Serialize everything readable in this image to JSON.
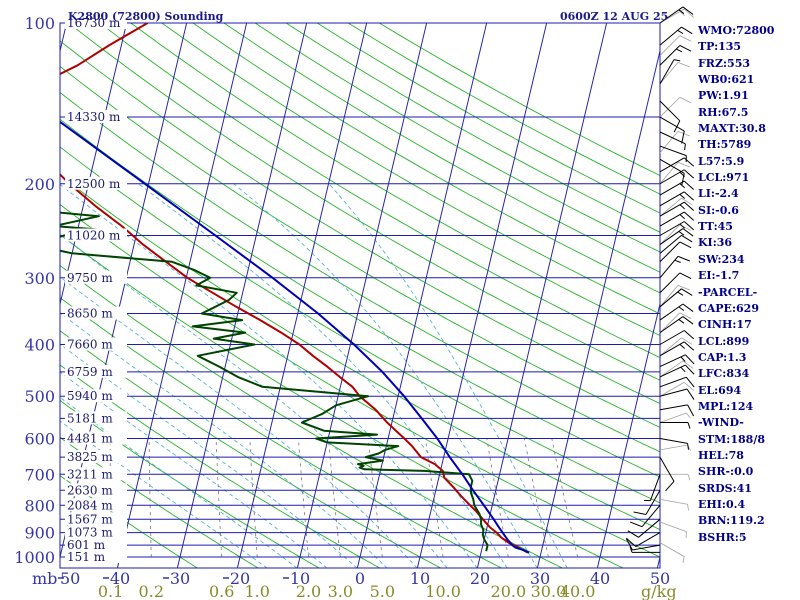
{
  "header": {
    "station_title": "K2800 (72800) Sounding",
    "valid_time": "0600Z 12 AUG 25"
  },
  "colors": {
    "isobar": "#1c1cae",
    "isotherm": "#2727a6",
    "dry_adiabat": "#28b428",
    "moist_adiabat": "#5ab4d2",
    "mixing_ratio": "#787878",
    "temperature": "#b00000",
    "dewpoint": "#004400",
    "parcel": "#0000b4",
    "wind_barb": "#000000",
    "wind_barb_faint": "#a0a0a0"
  },
  "axes": {
    "mb_label": "mb",
    "mixing_ratio_unit": "g/kg",
    "mixing_ratio_ticks": [
      "0.1",
      "0.2",
      "0.6",
      "1.0",
      "2.0",
      "3.0",
      "5.0",
      "10.0",
      "20.0",
      "30.0",
      "40.0"
    ]
  },
  "params": [
    "WMO:72800",
    "TP:135",
    "FRZ:553",
    "WB0:621",
    "PW:1.91",
    "RH:67.5",
    "MAXT:30.8",
    "TH:5789",
    "L57:5.9",
    "LCL:971",
    "LI:-2.4",
    "SI:-0.6",
    "TT:45",
    "KI:36",
    "SW:234",
    "EI:-1.7",
    "-PARCEL-",
    "CAPE:629",
    "CINH:17",
    "LCL:899",
    "CAP:1.3",
    "LFC:834",
    "EL:694",
    "MPL:124",
    "-WIND-",
    "STM:188/8",
    "HEL:78",
    "SHR-:0.0",
    "SRDS:41",
    "EHI:0.4",
    "BRN:119.2",
    "BSHR:5"
  ],
  "chart_data": {
    "type": "skew-t log-p sounding",
    "title": "K2800 (72800) Sounding",
    "subtitle": "0600Z 12 AUG 25",
    "ylabel": "mb",
    "yscale": "log",
    "ylim": [
      1000,
      100
    ],
    "xlim": [
      -50,
      50
    ],
    "grid": true,
    "isobars": [
      {
        "p": 100,
        "label": "100",
        "height": "16730 m"
      },
      {
        "p": 150,
        "height": "14330 m"
      },
      {
        "p": 200,
        "label": "200",
        "height": "12500 m"
      },
      {
        "p": 250,
        "height": "11020 m"
      },
      {
        "p": 300,
        "label": "300",
        "height": "9750 m"
      },
      {
        "p": 350,
        "height": "8650 m"
      },
      {
        "p": 400,
        "label": "400",
        "height": "7660 m"
      },
      {
        "p": 450,
        "height": "6759 m"
      },
      {
        "p": 500,
        "label": "500",
        "height": "5940 m"
      },
      {
        "p": 550,
        "height": "5181 m"
      },
      {
        "p": 600,
        "label": "600",
        "height": "4481 m"
      },
      {
        "p": 650,
        "height": "3825 m"
      },
      {
        "p": 700,
        "label": "700",
        "height": "3211 m"
      },
      {
        "p": 750,
        "height": "2630 m"
      },
      {
        "p": 800,
        "label": "800",
        "height": "2084 m"
      },
      {
        "p": 850,
        "height": "1567 m"
      },
      {
        "p": 900,
        "label": "900",
        "height": "1073 m"
      },
      {
        "p": 950,
        "height": "601 m"
      },
      {
        "p": 1000,
        "label": "1000",
        "height": "151 m"
      }
    ],
    "temperature_ticks": [
      "50",
      "40",
      "30",
      "20",
      "10",
      "0",
      "10",
      "20",
      "30",
      "40",
      "50"
    ],
    "temperature_tick_values": [
      -50,
      -40,
      -30,
      -20,
      -10,
      0,
      10,
      20,
      30,
      40,
      50
    ],
    "isotherm_values": [
      -110,
      -100,
      -90,
      -80,
      -70,
      -60,
      -50,
      -40,
      -30,
      -20,
      -10,
      0,
      10,
      20,
      30,
      40,
      50
    ],
    "dry_adiabat_thetas": [
      -30,
      -20,
      -10,
      0,
      10,
      20,
      30,
      40,
      50,
      60,
      70,
      80,
      90,
      100,
      110,
      120,
      130,
      140,
      150,
      160,
      170,
      180,
      190,
      200,
      210,
      220
    ],
    "moist_adiabat_bases": [
      -15,
      -10,
      -5,
      0,
      5,
      10,
      15,
      20,
      25,
      30,
      35
    ],
    "mixing_ratio_values": [
      0.1,
      0.2,
      0.6,
      1.0,
      2.0,
      3.0,
      5.0,
      10.0,
      20.0,
      30.0,
      40.0
    ],
    "series": [
      {
        "name": "Temperature",
        "color": "#b00000",
        "p": [
          981,
          960,
          940,
          920,
          900,
          880,
          850,
          820,
          800,
          770,
          740,
          710,
          690,
          670,
          650,
          620,
          600,
          560,
          530,
          500,
          480,
          460,
          440,
          420,
          400,
          380,
          360,
          340,
          320,
          300,
          280,
          260,
          240,
          220,
          200,
          180,
          165,
          150,
          140,
          130,
          120,
          110,
          100
        ],
        "t": [
          27.8,
          26.0,
          24.2,
          22.8,
          21.8,
          20.5,
          19.0,
          17.5,
          16.3,
          14.5,
          12.8,
          10.9,
          10.4,
          8.8,
          6.2,
          4.3,
          2.7,
          -0.8,
          -3.2,
          -6.4,
          -8.0,
          -10.5,
          -13.0,
          -15.8,
          -18.5,
          -22.0,
          -26.0,
          -30.5,
          -35.0,
          -39.8,
          -44.0,
          -48.5,
          -52.8,
          -58.0,
          -63.2,
          -68.2,
          -71.4,
          -77.5,
          -75.0,
          -72.0,
          -66.5,
          -62.0,
          -56.5
        ]
      },
      {
        "name": "Dewpoint",
        "color": "#004400",
        "p": [
          975,
          950,
          930,
          910,
          890,
          870,
          850,
          830,
          800,
          780,
          760,
          740,
          720,
          700,
          690,
          685,
          680,
          675,
          670,
          660,
          650,
          640,
          630,
          620,
          610,
          600,
          590,
          580,
          560,
          540,
          520,
          500,
          480,
          460,
          440,
          420,
          400,
          390,
          380,
          370,
          360,
          350,
          340,
          330,
          320,
          310,
          300,
          290,
          280,
          270,
          260,
          250,
          245,
          240,
          230,
          220,
          212,
          205,
          200,
          195,
          180,
          170,
          160,
          150,
          140,
          130,
          120,
          110,
          100
        ],
        "t": [
          20.8,
          20.8,
          20.1,
          19.6,
          19.5,
          18.9,
          18.7,
          18.2,
          17.0,
          16.6,
          16.0,
          15.7,
          15.7,
          14.9,
          7.3,
          -2.7,
          -3.6,
          -3.0,
          -4.0,
          0.0,
          -3.0,
          -1.0,
          0.0,
          2.0,
          -10.0,
          -12.0,
          -2.0,
          -11.0,
          -15.0,
          -12.0,
          -10.0,
          -5.0,
          -23.0,
          -27.5,
          -31.0,
          -35.0,
          -26.0,
          -33.0,
          -28.0,
          -37.0,
          -29.0,
          -36.0,
          -34.0,
          -32.0,
          -31.0,
          -38.0,
          -36.0,
          -39.0,
          -43.0,
          -60.0,
          -67.0,
          -62.0,
          -54.0,
          -64.0,
          -57.0,
          -76.0,
          -69.0,
          -78.0,
          -79.0,
          -70.0,
          -78.0,
          -84.0,
          -88.0,
          -85.0,
          -95.0,
          -92.0,
          -93.5,
          -94.5,
          -96.0
        ]
      },
      {
        "name": "Parcel",
        "color": "#0000b4",
        "p": [
          981,
          970,
          960,
          950,
          940,
          930,
          920,
          900,
          880,
          850,
          800,
          750,
          700,
          650,
          600,
          550,
          500,
          450,
          400,
          350,
          300,
          250,
          200,
          150,
          120,
          105
        ],
        "t": [
          28.0,
          26.9,
          25.5,
          24.9,
          24.5,
          24.0,
          23.6,
          22.8,
          22.0,
          20.8,
          18.6,
          16.2,
          13.8,
          11.0,
          8.2,
          4.8,
          1.0,
          -3.6,
          -9.4,
          -16.6,
          -25.6,
          -36.8,
          -50.6,
          -68.5,
          -83.5,
          -91.5
        ]
      }
    ],
    "wind_barbs": [
      {
        "p": 100,
        "dir": 55,
        "spd": 15
      },
      {
        "p": 110,
        "dir": 50,
        "spd": 15
      },
      {
        "p": 120,
        "dir": 45,
        "spd": 15
      },
      {
        "p": 130,
        "dir": 30,
        "spd": 5
      },
      {
        "p": 140,
        "dir": 135,
        "spd": 10
      },
      {
        "p": 150,
        "dir": 120,
        "spd": 10
      },
      {
        "p": 160,
        "dir": 115,
        "spd": 5
      },
      {
        "p": 170,
        "dir": 110,
        "spd": 5
      },
      {
        "p": 180,
        "dir": 120,
        "spd": 10
      },
      {
        "p": 190,
        "dir": 60,
        "spd": 10
      },
      {
        "p": 200,
        "dir": 60,
        "spd": 15
      },
      {
        "p": 210,
        "dir": 60,
        "spd": 15
      },
      {
        "p": 220,
        "dir": 60,
        "spd": 15
      },
      {
        "p": 230,
        "dir": 60,
        "spd": 15
      },
      {
        "p": 240,
        "dir": 60,
        "spd": 15
      },
      {
        "p": 250,
        "dir": 60,
        "spd": 15
      },
      {
        "p": 260,
        "dir": 55,
        "spd": 15
      },
      {
        "p": 270,
        "dir": 50,
        "spd": 10
      },
      {
        "p": 280,
        "dir": 45,
        "spd": 10
      },
      {
        "p": 300,
        "dir": 40,
        "spd": 15
      },
      {
        "p": 320,
        "dir": 45,
        "spd": 10
      },
      {
        "p": 340,
        "dir": 50,
        "spd": 15
      },
      {
        "p": 360,
        "dir": 55,
        "spd": 15
      },
      {
        "p": 380,
        "dir": 55,
        "spd": 15
      },
      {
        "p": 400,
        "dir": 60,
        "spd": 10
      },
      {
        "p": 420,
        "dir": 60,
        "spd": 15
      },
      {
        "p": 440,
        "dir": 65,
        "spd": 15
      },
      {
        "p": 460,
        "dir": 65,
        "spd": 15
      },
      {
        "p": 480,
        "dir": 70,
        "spd": 10
      },
      {
        "p": 500,
        "dir": 75,
        "spd": 10
      },
      {
        "p": 530,
        "dir": 80,
        "spd": 10
      },
      {
        "p": 560,
        "dir": 90,
        "spd": 5
      },
      {
        "p": 600,
        "dir": 100,
        "spd": 5
      },
      {
        "p": 650,
        "dir": 150,
        "spd": 10
      },
      {
        "p": 700,
        "dir": 200,
        "spd": 5
      },
      {
        "p": 750,
        "dir": 210,
        "spd": 10
      },
      {
        "p": 800,
        "dir": 220,
        "spd": 10
      },
      {
        "p": 850,
        "dir": 230,
        "spd": 10
      },
      {
        "p": 900,
        "dir": 240,
        "spd": 10
      },
      {
        "p": 950,
        "dir": 260,
        "spd": 10
      },
      {
        "p": 980,
        "dir": 270,
        "spd": 5
      }
    ],
    "wind_barb_shading": [
      {
        "p": 100,
        "dir": 60,
        "spd": 15
      },
      {
        "p": 115,
        "dir": 45,
        "spd": 10
      },
      {
        "p": 130,
        "dir": 40,
        "spd": 10
      },
      {
        "p": 150,
        "dir": 45,
        "spd": 10
      },
      {
        "p": 175,
        "dir": 40,
        "spd": 10
      },
      {
        "p": 200,
        "dir": 40,
        "spd": 10
      },
      {
        "p": 230,
        "dir": 50,
        "spd": 10
      },
      {
        "p": 260,
        "dir": 45,
        "spd": 10
      },
      {
        "p": 300,
        "dir": 40,
        "spd": 10
      },
      {
        "p": 340,
        "dir": 40,
        "spd": 10
      },
      {
        "p": 380,
        "dir": 45,
        "spd": 10
      },
      {
        "p": 420,
        "dir": 50,
        "spd": 10
      },
      {
        "p": 460,
        "dir": 55,
        "spd": 10
      },
      {
        "p": 500,
        "dir": 60,
        "spd": 10
      },
      {
        "p": 560,
        "dir": 70,
        "spd": 5
      },
      {
        "p": 630,
        "dir": 80,
        "spd": 5
      },
      {
        "p": 700,
        "dir": 90,
        "spd": 5
      },
      {
        "p": 780,
        "dir": 100,
        "spd": 5
      },
      {
        "p": 860,
        "dir": 110,
        "spd": 5
      },
      {
        "p": 940,
        "dir": 120,
        "spd": 5
      }
    ]
  }
}
